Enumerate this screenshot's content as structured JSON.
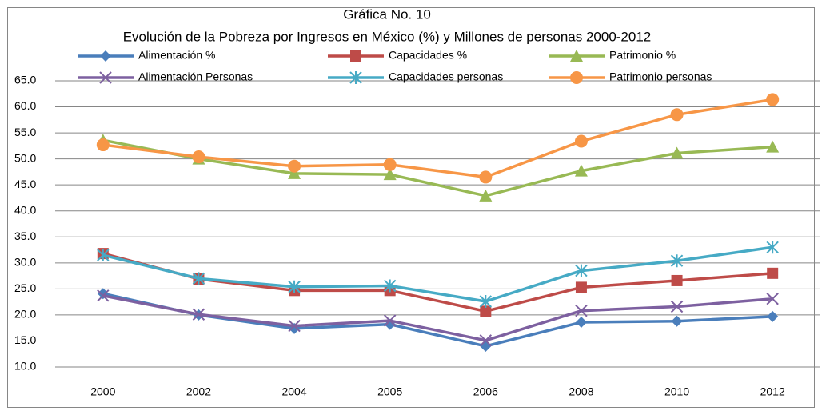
{
  "chart_data": {
    "type": "line",
    "title": "Gráfica No. 10",
    "subtitle": "Evolución de la Pobreza por Ingresos en México (%) y Millones de personas 2000-2012",
    "categories": [
      "2000",
      "2002",
      "2004",
      "2005",
      "2006",
      "2008",
      "2010",
      "2012"
    ],
    "series": [
      {
        "name": "Alimentación %",
        "color": "#4a7ebb",
        "marker": "diamond",
        "values": [
          24.1,
          20.0,
          17.4,
          18.2,
          14.0,
          18.6,
          18.8,
          19.7
        ]
      },
      {
        "name": "Capacidades %",
        "color": "#be4b48",
        "marker": "square",
        "values": [
          31.8,
          26.9,
          24.7,
          24.7,
          20.7,
          25.3,
          26.6,
          28.0
        ]
      },
      {
        "name": "Patrimonio %",
        "color": "#98b954",
        "marker": "triangle",
        "values": [
          53.6,
          50.0,
          47.2,
          47.0,
          42.9,
          47.7,
          51.1,
          52.3
        ]
      },
      {
        "name": "Alimentación Personas",
        "color": "#7d60a0",
        "marker": "x",
        "values": [
          23.7,
          20.1,
          17.9,
          18.9,
          15.1,
          20.8,
          21.6,
          23.1
        ]
      },
      {
        "name": "Capacidades personas",
        "color": "#46aac5",
        "marker": "asterisk",
        "values": [
          31.5,
          27.0,
          25.4,
          25.6,
          22.6,
          28.5,
          30.4,
          33.0
        ]
      },
      {
        "name": "Patrimonio personas",
        "color": "#f79646",
        "marker": "circle",
        "values": [
          52.7,
          50.4,
          48.6,
          48.9,
          46.5,
          53.4,
          58.5,
          61.4
        ]
      }
    ],
    "ylim": [
      10,
      65
    ],
    "yticks": [
      {
        "value": 10,
        "label": "10.0"
      },
      {
        "value": 15,
        "label": "15.0"
      },
      {
        "value": 20,
        "label": "20.0"
      },
      {
        "value": 25,
        "label": "25.0"
      },
      {
        "value": 30,
        "label": "30.0"
      },
      {
        "value": 35,
        "label": "35.0"
      },
      {
        "value": 40,
        "label": "40.0"
      },
      {
        "value": 45,
        "label": "45.0"
      },
      {
        "value": 50,
        "label": "50.0"
      },
      {
        "value": 55,
        "label": "55.0"
      },
      {
        "value": 60,
        "label": "60.0"
      },
      {
        "value": 65,
        "label": "65.0"
      }
    ],
    "grid": true
  }
}
